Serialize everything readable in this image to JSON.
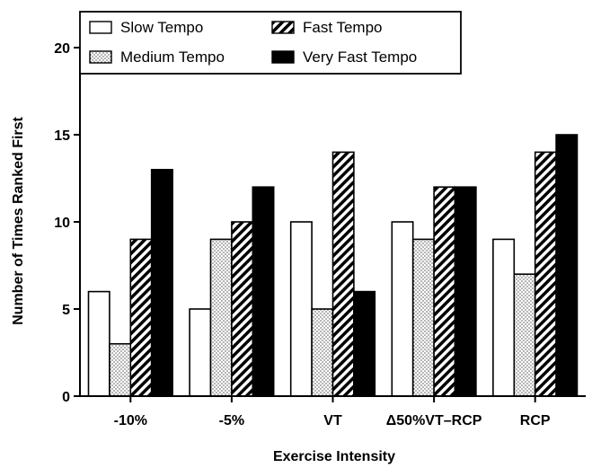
{
  "chart_data": {
    "type": "bar",
    "xlabel": "Exercise Intensity",
    "ylabel": "Number of Times Ranked First",
    "ylim": [
      0,
      20
    ],
    "yticks": [
      0,
      5,
      10,
      15,
      20
    ],
    "grid": false,
    "legend_position": "top",
    "categories": [
      "-10%",
      "-5%",
      "VT",
      "Δ50%VT–RCP",
      "RCP"
    ],
    "series": [
      {
        "name": "Slow Tempo",
        "pattern": "white",
        "values": [
          6,
          5,
          10,
          10,
          9
        ]
      },
      {
        "name": "Medium Tempo",
        "pattern": "dotted",
        "values": [
          3,
          9,
          5,
          9,
          7
        ]
      },
      {
        "name": "Fast Tempo",
        "pattern": "hatched",
        "values": [
          9,
          10,
          14,
          12,
          14
        ]
      },
      {
        "name": "Very Fast Tempo",
        "pattern": "black",
        "values": [
          13,
          12,
          6,
          12,
          15
        ]
      }
    ],
    "colors": {
      "stroke": "#000000",
      "fill_light": "#ffffff",
      "fill_dark": "#000000"
    }
  }
}
